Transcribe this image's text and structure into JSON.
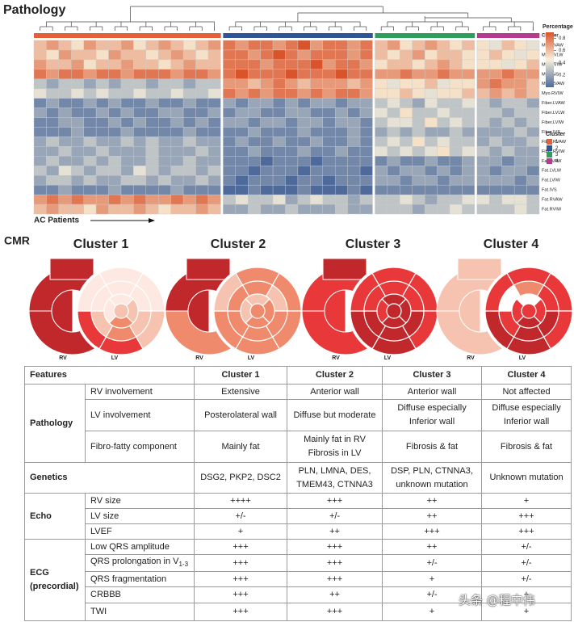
{
  "chart_data": {
    "type": "heatmap",
    "title": "Pathology",
    "rows": [
      "Myo.LVAW",
      "Myo.LVLW",
      "Myo.LVIW",
      "Myo.IVS",
      "Myo.RVAW",
      "Myo.RVIW",
      "Fiber.LVAW",
      "Fiber.LVLW",
      "Fiber.LVIW",
      "Fiber.IVS",
      "Fiber.RVAW",
      "Fiber.RVIW",
      "Fat.LVAW",
      "Fat.LVLW",
      "Fat.LVIW",
      "Fat.IVS",
      "Fat.RVAW",
      "Fat.RVIW"
    ],
    "values": [
      [
        0.6,
        0.7,
        0.6,
        0.5,
        0.7,
        0.6,
        0.6,
        0.7,
        0.5,
        0.6,
        0.7,
        0.6,
        0.5,
        0.6,
        0.7,
        0.8,
        0.7,
        0.8,
        0.8,
        0.7,
        0.8,
        0.9,
        0.7,
        0.8,
        0.8,
        0.7,
        0.8,
        0.6,
        0.7,
        0.5,
        0.6,
        0.7,
        0.6,
        0.5,
        0.6,
        0.5,
        0.4,
        0.6,
        0.5,
        0.4
      ],
      [
        0.6,
        0.5,
        0.7,
        0.6,
        0.6,
        0.5,
        0.7,
        0.6,
        0.6,
        0.5,
        0.6,
        0.7,
        0.6,
        0.5,
        0.6,
        0.8,
        0.8,
        0.7,
        0.8,
        0.9,
        0.8,
        0.7,
        0.8,
        0.8,
        0.8,
        0.7,
        0.8,
        0.6,
        0.5,
        0.6,
        0.7,
        0.5,
        0.6,
        0.6,
        0.5,
        0.5,
        0.6,
        0.5,
        0.4,
        0.5
      ],
      [
        0.7,
        0.6,
        0.6,
        0.7,
        0.5,
        0.6,
        0.6,
        0.7,
        0.6,
        0.6,
        0.5,
        0.6,
        0.7,
        0.6,
        0.6,
        0.8,
        0.8,
        0.8,
        0.7,
        0.8,
        0.8,
        0.8,
        0.9,
        0.7,
        0.8,
        0.8,
        0.7,
        0.5,
        0.6,
        0.6,
        0.5,
        0.6,
        0.7,
        0.6,
        0.5,
        0.5,
        0.5,
        0.4,
        0.5,
        0.6
      ],
      [
        0.8,
        0.7,
        0.8,
        0.8,
        0.7,
        0.8,
        0.8,
        0.7,
        0.8,
        0.8,
        0.8,
        0.7,
        0.8,
        0.8,
        0.7,
        0.8,
        0.9,
        0.8,
        0.8,
        0.8,
        0.9,
        0.8,
        0.8,
        0.8,
        0.9,
        0.8,
        0.8,
        0.7,
        0.7,
        0.8,
        0.7,
        0.7,
        0.8,
        0.7,
        0.7,
        0.7,
        0.7,
        0.8,
        0.7,
        0.7
      ],
      [
        0.3,
        0.2,
        0.3,
        0.3,
        0.2,
        0.3,
        0.2,
        0.3,
        0.3,
        0.2,
        0.3,
        0.3,
        0.2,
        0.3,
        0.3,
        0.7,
        0.7,
        0.6,
        0.7,
        0.8,
        0.7,
        0.6,
        0.7,
        0.7,
        0.7,
        0.6,
        0.7,
        0.5,
        0.4,
        0.5,
        0.5,
        0.6,
        0.4,
        0.5,
        0.5,
        0.7,
        0.8,
        0.7,
        0.7,
        0.6
      ],
      [
        0.4,
        0.3,
        0.3,
        0.4,
        0.3,
        0.4,
        0.3,
        0.3,
        0.4,
        0.3,
        0.3,
        0.4,
        0.3,
        0.3,
        0.4,
        0.8,
        0.7,
        0.8,
        0.7,
        0.8,
        0.8,
        0.7,
        0.8,
        0.7,
        0.8,
        0.8,
        0.7,
        0.5,
        0.5,
        0.6,
        0.5,
        0.4,
        0.5,
        0.5,
        0.6,
        0.6,
        0.7,
        0.6,
        0.7,
        0.6
      ],
      [
        0.1,
        0.2,
        0.1,
        0.1,
        0.2,
        0.1,
        0.2,
        0.1,
        0.1,
        0.2,
        0.1,
        0.1,
        0.2,
        0.1,
        0.1,
        0.2,
        0.1,
        0.2,
        0.2,
        0.1,
        0.2,
        0.1,
        0.2,
        0.2,
        0.1,
        0.2,
        0.2,
        0.3,
        0.4,
        0.3,
        0.2,
        0.4,
        0.3,
        0.3,
        0.4,
        0.3,
        0.2,
        0.3,
        0.3,
        0.2
      ],
      [
        0.2,
        0.1,
        0.2,
        0.1,
        0.1,
        0.2,
        0.1,
        0.2,
        0.1,
        0.1,
        0.2,
        0.2,
        0.1,
        0.1,
        0.2,
        0.1,
        0.2,
        0.2,
        0.1,
        0.1,
        0.2,
        0.2,
        0.1,
        0.1,
        0.2,
        0.1,
        0.2,
        0.4,
        0.3,
        0.5,
        0.3,
        0.3,
        0.4,
        0.3,
        0.3,
        0.3,
        0.3,
        0.2,
        0.3,
        0.3
      ],
      [
        0.1,
        0.1,
        0.2,
        0.2,
        0.1,
        0.1,
        0.2,
        0.1,
        0.2,
        0.1,
        0.1,
        0.2,
        0.1,
        0.2,
        0.1,
        0.2,
        0.2,
        0.1,
        0.2,
        0.2,
        0.1,
        0.2,
        0.2,
        0.1,
        0.2,
        0.2,
        0.1,
        0.3,
        0.4,
        0.4,
        0.3,
        0.5,
        0.3,
        0.4,
        0.3,
        0.3,
        0.2,
        0.3,
        0.2,
        0.3
      ],
      [
        0.1,
        0.1,
        0.1,
        0.2,
        0.1,
        0.1,
        0.1,
        0.2,
        0.1,
        0.1,
        0.1,
        0.1,
        0.2,
        0.1,
        0.1,
        0.1,
        0.1,
        0.2,
        0.1,
        0.1,
        0.1,
        0.2,
        0.1,
        0.1,
        0.1,
        0.2,
        0.1,
        0.2,
        0.3,
        0.2,
        0.3,
        0.2,
        0.2,
        0.3,
        0.2,
        0.2,
        0.2,
        0.2,
        0.3,
        0.2
      ],
      [
        0.2,
        0.3,
        0.2,
        0.2,
        0.3,
        0.2,
        0.2,
        0.3,
        0.2,
        0.3,
        0.2,
        0.2,
        0.3,
        0.2,
        0.2,
        0.1,
        0.2,
        0.1,
        0.1,
        0.2,
        0.1,
        0.1,
        0.2,
        0.1,
        0.1,
        0.2,
        0.1,
        0.3,
        0.4,
        0.3,
        0.5,
        0.3,
        0.4,
        0.3,
        0.3,
        0.2,
        0.3,
        0.2,
        0.2,
        0.3
      ],
      [
        0.2,
        0.2,
        0.3,
        0.2,
        0.2,
        0.3,
        0.2,
        0.2,
        0.2,
        0.3,
        0.2,
        0.2,
        0.2,
        0.3,
        0.2,
        0.1,
        0.1,
        0.2,
        0.1,
        0.1,
        0.1,
        0.2,
        0.1,
        0.1,
        0.2,
        0.1,
        0.1,
        0.4,
        0.3,
        0.4,
        0.3,
        0.4,
        0.5,
        0.3,
        0.4,
        0.3,
        0.2,
        0.3,
        0.2,
        0.2
      ],
      [
        0.2,
        0.3,
        0.2,
        0.2,
        0.3,
        0.2,
        0.3,
        0.2,
        0.2,
        0.3,
        0.2,
        0.2,
        0.3,
        0.2,
        0.2,
        0.1,
        0.1,
        0.1,
        0.0,
        0.1,
        0.1,
        0.1,
        0.0,
        0.1,
        0.1,
        0.1,
        0.1,
        0.1,
        0.2,
        0.1,
        0.1,
        0.2,
        0.1,
        0.1,
        0.2,
        0.2,
        0.2,
        0.1,
        0.2,
        0.2
      ],
      [
        0.3,
        0.2,
        0.4,
        0.3,
        0.2,
        0.3,
        0.3,
        0.2,
        0.4,
        0.3,
        0.2,
        0.3,
        0.3,
        0.2,
        0.3,
        0.1,
        0.1,
        0.0,
        0.1,
        0.1,
        0.1,
        0.0,
        0.1,
        0.1,
        0.1,
        0.1,
        0.0,
        0.2,
        0.1,
        0.2,
        0.2,
        0.1,
        0.2,
        0.1,
        0.2,
        0.2,
        0.1,
        0.2,
        0.2,
        0.1
      ],
      [
        0.2,
        0.3,
        0.3,
        0.2,
        0.3,
        0.2,
        0.2,
        0.3,
        0.3,
        0.2,
        0.3,
        0.2,
        0.2,
        0.3,
        0.2,
        0.1,
        0.0,
        0.1,
        0.1,
        0.1,
        0.0,
        0.1,
        0.1,
        0.0,
        0.1,
        0.1,
        0.1,
        0.2,
        0.2,
        0.1,
        0.2,
        0.2,
        0.1,
        0.2,
        0.2,
        0.2,
        0.2,
        0.2,
        0.1,
        0.2
      ],
      [
        0.1,
        0.1,
        0.2,
        0.1,
        0.1,
        0.1,
        0.2,
        0.1,
        0.1,
        0.1,
        0.1,
        0.2,
        0.1,
        0.1,
        0.1,
        0.0,
        0.0,
        0.1,
        0.0,
        0.0,
        0.0,
        0.1,
        0.0,
        0.0,
        0.0,
        0.1,
        0.0,
        0.1,
        0.1,
        0.1,
        0.1,
        0.1,
        0.1,
        0.1,
        0.1,
        0.1,
        0.1,
        0.1,
        0.1,
        0.1
      ],
      [
        0.7,
        0.8,
        0.7,
        0.8,
        0.7,
        0.7,
        0.8,
        0.7,
        0.8,
        0.7,
        0.7,
        0.8,
        0.7,
        0.8,
        0.7,
        0.3,
        0.4,
        0.3,
        0.3,
        0.4,
        0.2,
        0.3,
        0.4,
        0.3,
        0.3,
        0.2,
        0.3,
        0.3,
        0.3,
        0.4,
        0.3,
        0.2,
        0.3,
        0.3,
        0.4,
        0.4,
        0.3,
        0.4,
        0.4,
        0.3
      ],
      [
        0.6,
        0.7,
        0.6,
        0.6,
        0.5,
        0.7,
        0.6,
        0.6,
        0.7,
        0.6,
        0.5,
        0.6,
        0.6,
        0.7,
        0.6,
        0.2,
        0.2,
        0.3,
        0.2,
        0.2,
        0.3,
        0.2,
        0.2,
        0.2,
        0.3,
        0.2,
        0.2,
        0.3,
        0.3,
        0.3,
        0.2,
        0.3,
        0.3,
        0.4,
        0.3,
        0.3,
        0.3,
        0.3,
        0.4,
        0.3
      ]
    ],
    "column_clusters": [
      1,
      1,
      1,
      1,
      1,
      1,
      1,
      1,
      1,
      1,
      1,
      1,
      1,
      1,
      1,
      2,
      2,
      2,
      2,
      2,
      2,
      2,
      2,
      2,
      2,
      2,
      2,
      3,
      3,
      3,
      3,
      3,
      3,
      3,
      3,
      4,
      4,
      4,
      4,
      4
    ],
    "cluster_label": "Cluster",
    "clusters": [
      {
        "name": "1",
        "color": "#e4603a"
      },
      {
        "name": "2",
        "color": "#2f5597"
      },
      {
        "name": "3",
        "color": "#2ca05a"
      },
      {
        "name": "4",
        "color": "#b83a8e"
      }
    ],
    "cluster_legend_title": "Cluster",
    "legend_title": "Percentage",
    "color_range": [
      0,
      0.9
    ],
    "color_ticks": [
      0.2,
      0.4,
      0.6,
      0.8
    ],
    "colors": [
      "#4d6a9a",
      "#f8f1dc",
      "#d9542a"
    ],
    "x_label": "AC Patients"
  },
  "cmr": {
    "title": "CMR",
    "rv_label": "RV",
    "lv_label": "LV",
    "panels": [
      {
        "title": "Cluster 1",
        "rv_colors": [
          "#c0282b",
          "#c0282b",
          "#c0282b",
          "#c0282b"
        ],
        "lv_colors": [
          "#fde9e2",
          "#fde9e2",
          "#f6c3b0",
          "#e8383a",
          "#e8383a",
          "#fde9e2",
          "#fde9e2",
          "#fde9e2",
          "#f6c3b0",
          "#f08a6c",
          "#f6c3b0",
          "#fde9e2",
          "#fde9e2",
          "#f6c3b0",
          "#f08a6c",
          "#fde9e2",
          "#f6c3b0"
        ]
      },
      {
        "title": "Cluster 2",
        "rv_colors": [
          "#c0282b",
          "#c0282b",
          "#f08a6c",
          "#c0282b"
        ],
        "lv_colors": [
          "#f08a6c",
          "#f08a6c",
          "#f08a6c",
          "#f08a6c",
          "#f08a6c",
          "#f6c3b0",
          "#f08a6c",
          "#f6c3b0",
          "#f08a6c",
          "#f08a6c",
          "#f08a6c",
          "#f08a6c",
          "#f6c3b0",
          "#f08a6c",
          "#f08a6c",
          "#f6c3b0",
          "#f08a6c"
        ]
      },
      {
        "title": "Cluster 3",
        "rv_colors": [
          "#c0282b",
          "#e8383a",
          "#e8383a",
          "#e8383a"
        ],
        "lv_colors": [
          "#e8383a",
          "#e8383a",
          "#e8383a",
          "#c0282b",
          "#c0282b",
          "#e8383a",
          "#e8383a",
          "#e8383a",
          "#c0282b",
          "#c0282b",
          "#c0282b",
          "#e8383a",
          "#c0282b",
          "#c0282b",
          "#c0282b",
          "#e8383a",
          "#c0282b"
        ]
      },
      {
        "title": "Cluster 4",
        "rv_colors": [
          "#f6c3b0",
          "#f6c3b0",
          "#f6c3b0",
          "#f6c3b0"
        ],
        "lv_colors": [
          "#e8383a",
          "#e8383a",
          "#e8383a",
          "#c0282b",
          "#c0282b",
          "#e8383a",
          "#f08a6c",
          "#e8383a",
          "#c0282b",
          "#c0282b",
          "#e8383a",
          "#ffffff",
          "#ffffff",
          "#e8383a",
          "#c0282b",
          "#e8383a",
          "#e8383a"
        ]
      }
    ]
  },
  "table": {
    "header": [
      "Features",
      "Cluster 1",
      "Cluster 2",
      "Cluster 3",
      "Cluster 4"
    ],
    "groups": [
      {
        "name": "Pathology",
        "rows": [
          {
            "feature": "RV involvement",
            "cells": [
              "Extensive",
              "Anterior wall",
              "Anterior wall",
              "Not affected"
            ]
          },
          {
            "feature": "LV involvement",
            "cells": [
              "Posterolateral wall",
              "Diffuse but moderate",
              [
                "Diffuse especially",
                "Inferior wall"
              ],
              [
                "Diffuse especially",
                "Inferior wall"
              ]
            ]
          },
          {
            "feature": "Fibro-fatty component",
            "cells": [
              "Mainly fat",
              [
                "Mainly fat in RV",
                "Fibrosis in LV"
              ],
              "Fibrosis & fat",
              "Fibrosis & fat"
            ]
          }
        ]
      },
      {
        "name": "Genetics",
        "cells": [
          "DSG2, PKP2, DSC2",
          [
            "PLN, LMNA, DES,",
            "TMEM43, CTNNA3"
          ],
          [
            "DSP, PLN, CTNNA3,",
            "unknown mutation"
          ],
          "Unknown mutation"
        ]
      },
      {
        "name": "Echo",
        "rows": [
          {
            "feature": "RV size",
            "cells": [
              "++++",
              "+++",
              "++",
              "+"
            ]
          },
          {
            "feature": "LV size",
            "cells": [
              "+/-",
              "+/-",
              "++",
              "+++"
            ]
          },
          {
            "feature": "LVEF",
            "cells": [
              "+",
              "++",
              "+++",
              "+++"
            ]
          }
        ]
      },
      {
        "name": [
          "ECG",
          "(precordial)"
        ],
        "rows": [
          {
            "feature": "Low QRS amplitude",
            "cells": [
              "+++",
              "+++",
              "++",
              "+/-"
            ]
          },
          {
            "feature": {
              "text": "QRS prolongation in V",
              "sub": "1-3"
            },
            "cells": [
              "+++",
              "+++",
              "+/-",
              "+/-"
            ]
          },
          {
            "feature": "QRS fragmentation",
            "cells": [
              "+++",
              "+++",
              "+",
              "+/-"
            ]
          },
          {
            "feature": "CRBBB",
            "cells": [
              "+++",
              "++",
              "+/-",
              "+"
            ]
          },
          {
            "feature": "TWI",
            "cells": [
              "+++",
              "+++",
              "+",
              "+"
            ]
          }
        ]
      }
    ]
  },
  "watermark": "头条 @程中伟"
}
